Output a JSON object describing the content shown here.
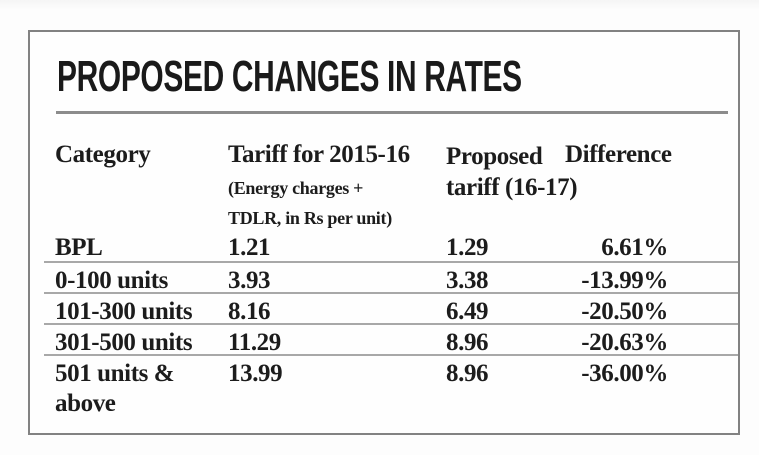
{
  "panel": {
    "title": "PROPOSED CHANGES IN RATES"
  },
  "table": {
    "headers": {
      "category": "Category",
      "tariff": "Tariff for 2015-16",
      "tariff_note_line1": "(Energy charges +",
      "tariff_note_line2": "TDLR, in Rs per unit)",
      "proposed_line1": "Proposed",
      "proposed_line2": "tariff (16-17)",
      "difference": "Difference"
    },
    "rows": [
      {
        "category": "BPL",
        "tariff": "1.21",
        "proposed": "1.29",
        "difference": "6.61%"
      },
      {
        "category": "0-100 units",
        "tariff": "3.93",
        "proposed": "3.38",
        "difference": "-13.99%"
      },
      {
        "category": "101-300 units",
        "tariff": "8.16",
        "proposed": "6.49",
        "difference": "-20.50%"
      },
      {
        "category": "301-500 units",
        "tariff": "11.29",
        "proposed": "8.96",
        "difference": "-20.63%"
      },
      {
        "category": "501 units & above",
        "tariff": "13.99",
        "proposed": "8.96",
        "difference": "-36.00%"
      }
    ]
  },
  "colors": {
    "text": "#1c1c1c",
    "panel_border": "#828282",
    "title_rule": "#8c8c8c",
    "row_separator": "#a8a8a8",
    "background": "#fcfcfc"
  },
  "chart_data": {
    "type": "table",
    "title": "PROPOSED CHANGES IN RATES",
    "columns": [
      "Category",
      "Tariff for 2015-16 (Energy charges + TDLR, in Rs per unit)",
      "Proposed tariff (16-17)",
      "Difference"
    ],
    "rows": [
      [
        "BPL",
        1.21,
        1.29,
        "6.61%"
      ],
      [
        "0-100 units",
        3.93,
        3.38,
        "-13.99%"
      ],
      [
        "101-300 units",
        8.16,
        6.49,
        "-20.50%"
      ],
      [
        "301-500 units",
        11.29,
        8.96,
        "-20.63%"
      ],
      [
        "501 units & above",
        13.99,
        8.96,
        "-36.00%"
      ]
    ]
  }
}
